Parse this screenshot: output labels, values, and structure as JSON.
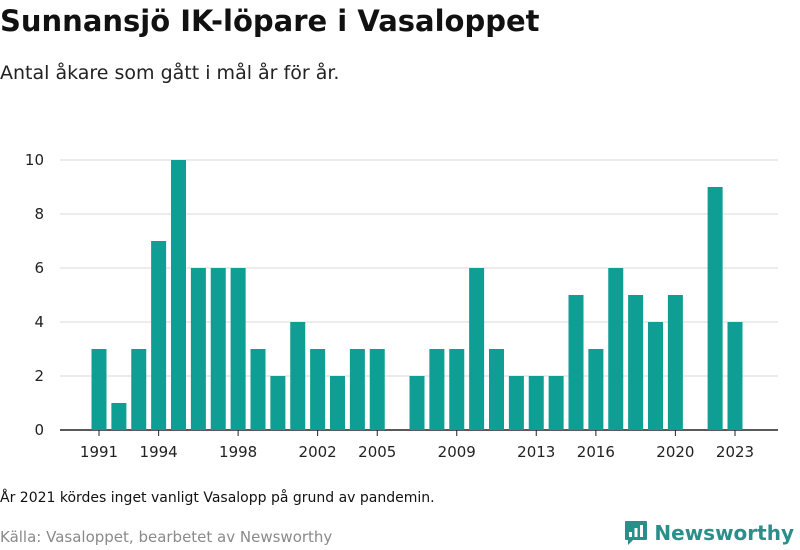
{
  "title": "Sunnansjö IK-löpare i Vasaloppet",
  "subtitle": "Antal åkare som gått i mål år för år.",
  "note": "År 2021 kördes inget vanligt Vasalopp på grund av pandemin.",
  "source": "Källa: Vasaloppet, bearbetet av Newsworthy",
  "brand": {
    "name": "Newsworthy",
    "icon": "newsworthy-logo-icon",
    "color": "#2a8f8a"
  },
  "colors": {
    "bar": "#0e9e94",
    "grid": "#d9d9d9",
    "axis": "#222222"
  },
  "chart_data": {
    "type": "bar",
    "categories": [
      1991,
      1992,
      1993,
      1994,
      1995,
      1996,
      1997,
      1998,
      1999,
      2000,
      2001,
      2002,
      2003,
      2004,
      2005,
      2006,
      2007,
      2008,
      2009,
      2010,
      2011,
      2012,
      2013,
      2014,
      2015,
      2016,
      2017,
      2018,
      2019,
      2020,
      2021,
      2022,
      2023
    ],
    "values": [
      3,
      1,
      3,
      7,
      10,
      6,
      6,
      6,
      3,
      2,
      4,
      3,
      2,
      3,
      3,
      0,
      2,
      3,
      3,
      6,
      3,
      2,
      2,
      2,
      5,
      3,
      6,
      5,
      4,
      5,
      null,
      9,
      4
    ],
    "x_tick_labels": [
      "1991",
      "1994",
      "1998",
      "2002",
      "2005",
      "2009",
      "2013",
      "2016",
      "2020",
      "2023"
    ],
    "y_ticks": [
      0,
      2,
      4,
      6,
      8,
      10
    ],
    "ylim": [
      0,
      10
    ],
    "grid": "horizontal"
  }
}
